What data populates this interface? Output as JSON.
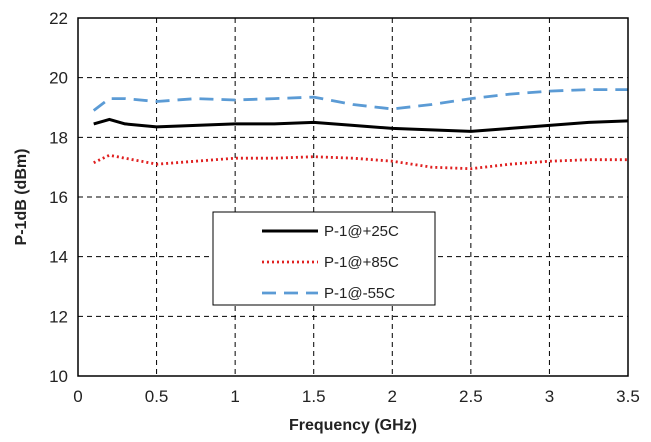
{
  "chart_data": {
    "type": "line",
    "xlabel": "Frequency (GHz)",
    "ylabel": "P-1dB (dBm)",
    "xlim": [
      0,
      3.5
    ],
    "ylim": [
      10,
      22
    ],
    "xticks": [
      0,
      0.5,
      1,
      1.5,
      2,
      2.5,
      3,
      3.5
    ],
    "xtick_labels": [
      "0",
      "0.5",
      "1",
      "1.5",
      "2",
      "2.5",
      "3",
      "3.5"
    ],
    "yticks": [
      10,
      12,
      14,
      16,
      18,
      20,
      22
    ],
    "ytick_labels": [
      "10",
      "12",
      "14",
      "16",
      "18",
      "20",
      "22"
    ],
    "grid": true,
    "legend_position": "center",
    "series": [
      {
        "name": "P-1@+25C",
        "color": "#000000",
        "style": "solid",
        "x": [
          0.1,
          0.2,
          0.3,
          0.5,
          0.75,
          1.0,
          1.25,
          1.5,
          1.75,
          2.0,
          2.25,
          2.5,
          2.75,
          3.0,
          3.25,
          3.5
        ],
        "y": [
          18.45,
          18.6,
          18.45,
          18.35,
          18.4,
          18.45,
          18.45,
          18.5,
          18.4,
          18.3,
          18.25,
          18.2,
          18.3,
          18.4,
          18.5,
          18.55
        ]
      },
      {
        "name": "P-1@+85C",
        "color": "#e02020",
        "style": "dotted",
        "x": [
          0.1,
          0.2,
          0.3,
          0.5,
          0.75,
          1.0,
          1.25,
          1.5,
          1.75,
          2.0,
          2.25,
          2.5,
          2.75,
          3.0,
          3.25,
          3.5
        ],
        "y": [
          17.15,
          17.4,
          17.3,
          17.1,
          17.2,
          17.3,
          17.3,
          17.35,
          17.3,
          17.2,
          17.0,
          16.95,
          17.1,
          17.2,
          17.25,
          17.25
        ]
      },
      {
        "name": "P-1@-55C",
        "color": "#5b9bd5",
        "style": "dashed",
        "x": [
          0.1,
          0.2,
          0.3,
          0.5,
          0.75,
          1.0,
          1.25,
          1.5,
          1.75,
          2.0,
          2.25,
          2.5,
          2.75,
          3.0,
          3.25,
          3.5
        ],
        "y": [
          18.9,
          19.3,
          19.3,
          19.2,
          19.3,
          19.25,
          19.3,
          19.35,
          19.1,
          18.95,
          19.1,
          19.3,
          19.45,
          19.55,
          19.6,
          19.6
        ]
      }
    ]
  }
}
